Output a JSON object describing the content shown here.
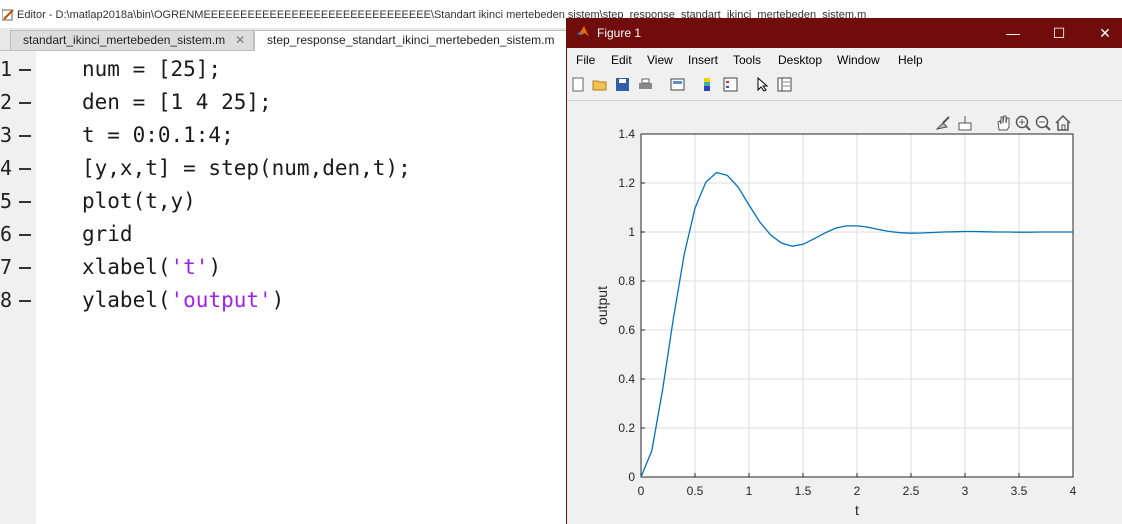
{
  "editor": {
    "title": "Editor - D:\\matlap2018a\\bin\\OGRENMEEEEEEEEEEEEEEEEEEEEEEEEEEEEEEE\\Standart ikinci mertebeden sistem\\step_response_standart_ikinci_mertebeden_sistem.m",
    "tabs": [
      {
        "label": "standart_ikinci_mertebeden_sistem.m",
        "close": "✕"
      },
      {
        "label": "step_response_standart_ikinci_mertebeden_sistem.m",
        "close": "✕"
      }
    ],
    "line_numbers": [
      "1",
      "2",
      "3",
      "4",
      "5",
      "6",
      "7",
      "8"
    ],
    "code": {
      "l1": "num = [25];",
      "l2": "den = [1 4 25];",
      "l3": "t = 0:0.1:4;",
      "l4": "[y,x,t] = step(num,den,t);",
      "l5": "plot(t,y)",
      "l6": "grid",
      "l7_fn": "xlabel(",
      "l7_str": "'t'",
      "l7_end": ")",
      "l8_fn": "ylabel(",
      "l8_str": "'output'",
      "l8_end": ")"
    }
  },
  "figure": {
    "title": "Figure 1",
    "window_buttons": {
      "minimize": "—",
      "maximize": "☐",
      "close": "✕"
    },
    "menu": [
      "File",
      "Edit",
      "View",
      "Insert",
      "Tools",
      "Desktop",
      "Window",
      "Help"
    ],
    "toolbar_icons": [
      "new-figure-icon",
      "open-icon",
      "save-icon",
      "print-icon",
      "link-plot-icon",
      "colorbar-icon",
      "legend-icon",
      "pointer-icon",
      "property-editor-icon"
    ],
    "axes_toolbar_icons": [
      "brush-icon",
      "data-tips-icon",
      "pan-icon",
      "zoom-in-icon",
      "zoom-out-icon",
      "home-icon"
    ],
    "colors": {
      "titlebar": "#700c0c",
      "line": "#0072bd"
    }
  },
  "chart_data": {
    "type": "line",
    "xlabel": "t",
    "ylabel": "output",
    "xlim": [
      0,
      4
    ],
    "ylim": [
      0,
      1.4
    ],
    "grid": true,
    "xticks": [
      "0",
      "0.5",
      "1",
      "1.5",
      "2",
      "2.5",
      "3",
      "3.5",
      "4"
    ],
    "yticks": [
      "0",
      "0.2",
      "0.4",
      "0.6",
      "0.8",
      "1",
      "1.2",
      "1.4"
    ],
    "series": [
      {
        "x": [
          0,
          0.1,
          0.2,
          0.3,
          0.4,
          0.5,
          0.6,
          0.7,
          0.8,
          0.9,
          1.0,
          1.1,
          1.2,
          1.3,
          1.4,
          1.5,
          1.6,
          1.7,
          1.8,
          1.9,
          2.0,
          2.1,
          2.2,
          2.3,
          2.4,
          2.5,
          2.6,
          2.7,
          2.8,
          2.9,
          3.0,
          3.1,
          3.2,
          3.3,
          3.4,
          3.5,
          3.6,
          3.7,
          3.8,
          3.9,
          4.0
        ],
        "y": [
          0,
          0.107,
          0.356,
          0.648,
          0.908,
          1.097,
          1.203,
          1.243,
          1.231,
          1.183,
          1.11,
          1.041,
          0.988,
          0.955,
          0.942,
          0.95,
          0.972,
          0.995,
          1.015,
          1.025,
          1.025,
          1.02,
          1.01,
          1.002,
          0.997,
          0.995,
          0.996,
          0.998,
          1.0,
          1.001,
          1.002,
          1.002,
          1.001,
          1.0,
          1.0,
          0.999,
          0.999,
          1.0,
          1.0,
          1.0,
          1.0
        ]
      }
    ]
  }
}
